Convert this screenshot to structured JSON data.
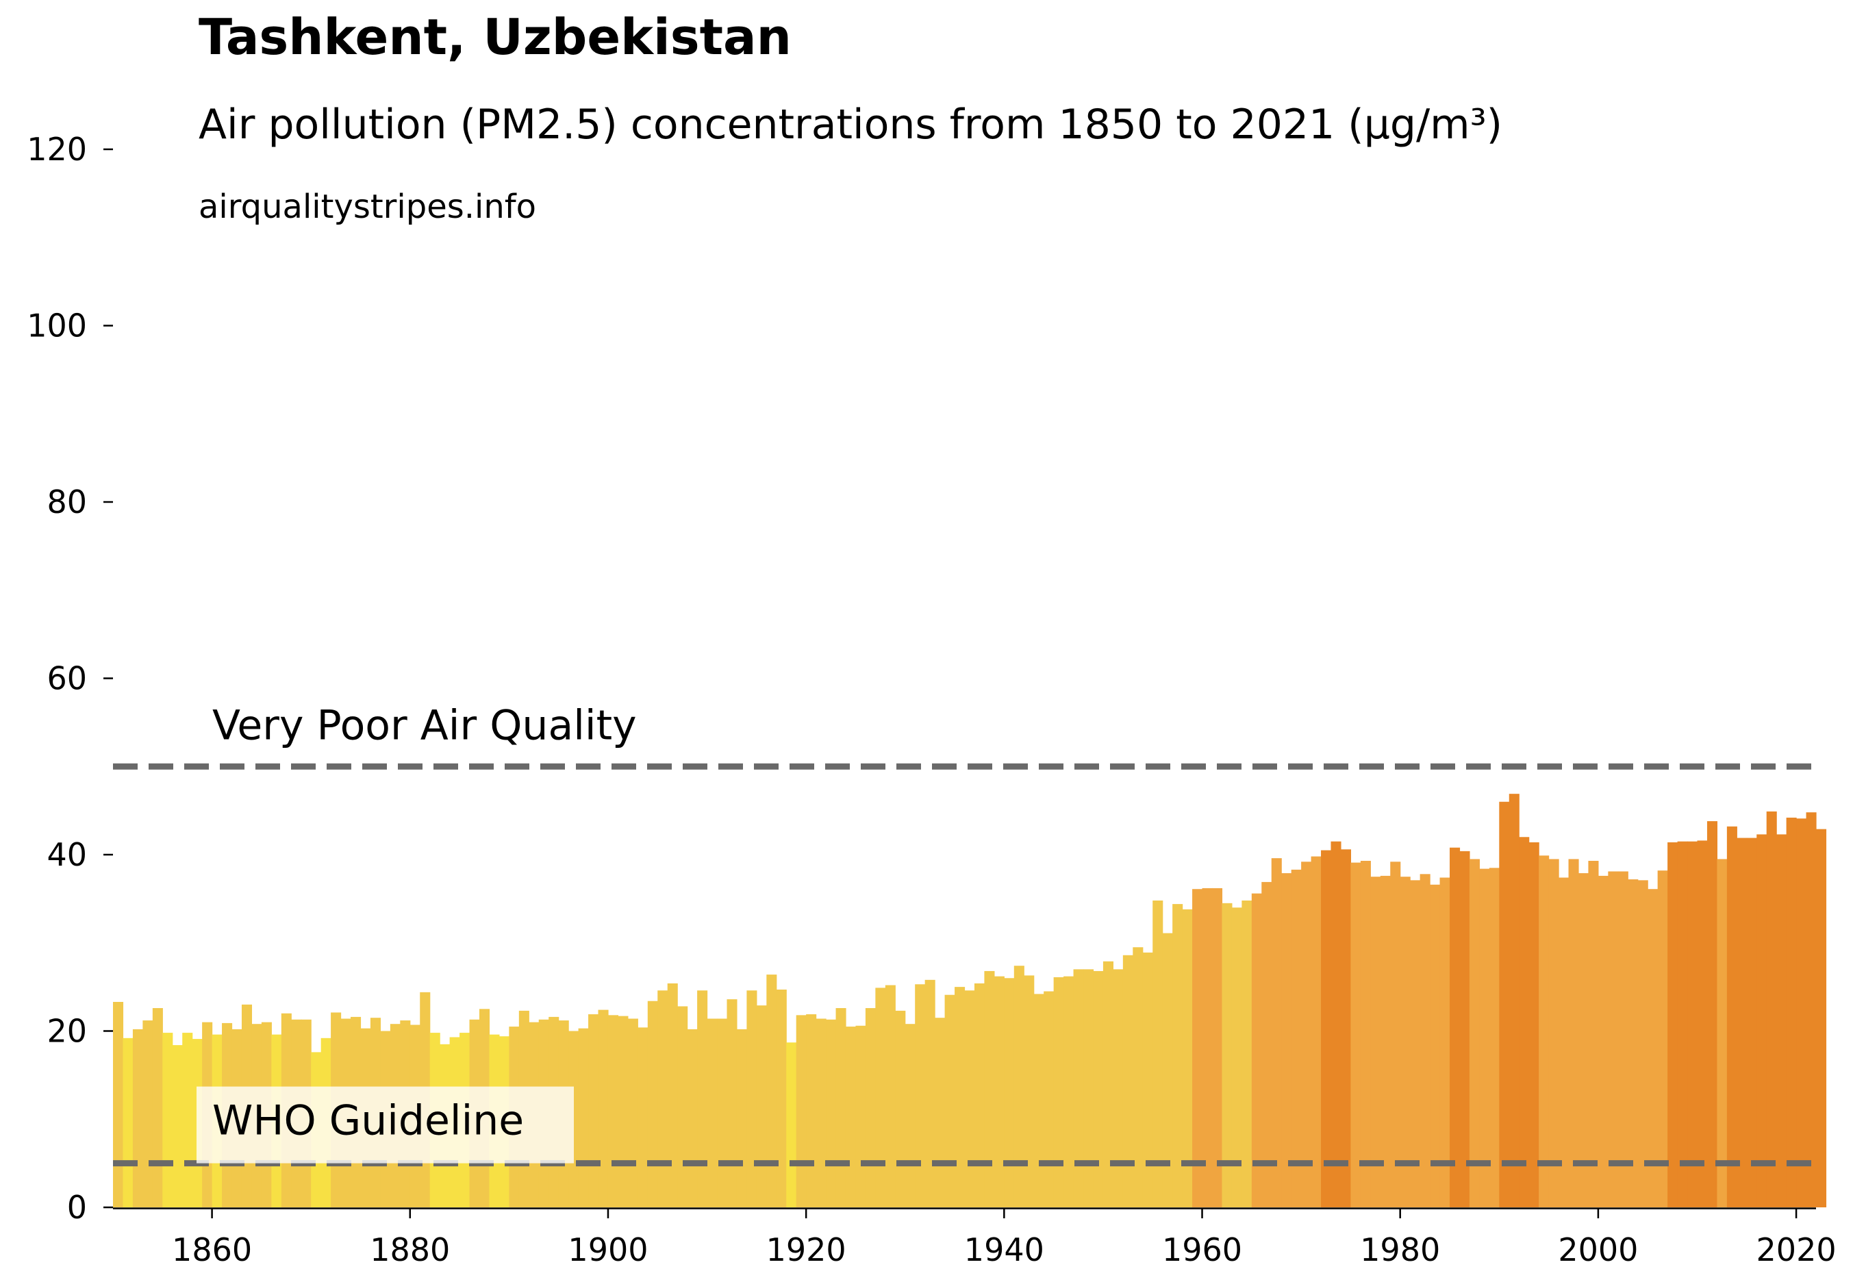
{
  "chart_data": {
    "type": "bar",
    "title": "Tashkent, Uzbekistan",
    "subtitle": "Air pollution (PM2.5) concentrations from 1850 to 2021 (µg/m³)",
    "source": "airqualitystripes.info",
    "xlim": [
      1850,
      2022
    ],
    "ylim": [
      0,
      120
    ],
    "x_ticks": [
      1860,
      1880,
      1900,
      1920,
      1940,
      1960,
      1980,
      2000,
      2020
    ],
    "y_ticks": [
      0,
      20,
      40,
      60,
      80,
      100,
      120
    ],
    "grid": false,
    "years_start": 1850,
    "values": [
      23.3,
      19.2,
      20.2,
      21.2,
      22.6,
      19.8,
      18.4,
      19.8,
      19.1,
      21.0,
      19.6,
      20.9,
      20.2,
      23.0,
      20.8,
      21.0,
      19.6,
      22.0,
      21.3,
      21.3,
      17.6,
      19.2,
      22.1,
      21.4,
      21.6,
      20.3,
      21.5,
      20.0,
      20.8,
      21.2,
      20.7,
      24.4,
      19.8,
      18.5,
      19.3,
      19.8,
      21.3,
      22.5,
      19.6,
      19.4,
      20.5,
      22.3,
      21.0,
      21.3,
      21.6,
      21.2,
      20.0,
      20.3,
      21.9,
      22.4,
      21.8,
      21.7,
      21.4,
      20.4,
      23.4,
      24.6,
      25.4,
      22.8,
      20.2,
      24.6,
      21.4,
      21.4,
      23.6,
      20.2,
      24.6,
      22.9,
      26.4,
      24.7,
      18.7,
      21.8,
      21.9,
      21.4,
      21.3,
      22.6,
      20.5,
      20.6,
      22.6,
      24.9,
      25.2,
      22.3,
      20.8,
      25.3,
      25.8,
      21.5,
      24.1,
      25.0,
      24.6,
      25.4,
      26.8,
      26.2,
      26.0,
      27.4,
      26.3,
      24.2,
      24.5,
      26.1,
      26.2,
      27.0,
      27.0,
      26.8,
      27.9,
      27.0,
      28.6,
      29.5,
      28.9,
      34.8,
      31.1,
      34.4,
      33.8,
      36.1,
      36.2,
      36.2,
      34.5,
      34.0,
      34.8,
      35.6,
      36.9,
      39.6,
      37.9,
      38.3,
      39.2,
      39.8,
      40.5,
      41.5,
      40.6,
      39.1,
      39.3,
      37.5,
      37.6,
      39.2,
      37.5,
      37.1,
      37.8,
      36.6,
      37.4,
      40.8,
      40.4,
      39.5,
      38.4,
      38.5,
      46.0,
      46.9,
      42.0,
      41.4,
      39.9,
      39.5,
      37.4,
      39.5,
      37.9,
      39.3,
      37.6,
      38.1,
      38.1,
      37.2,
      37.1,
      36.1,
      38.2,
      41.4,
      41.5,
      41.5,
      41.6,
      43.8,
      39.5,
      43.2,
      41.9,
      41.9,
      42.3,
      44.9,
      42.3,
      44.2,
      44.1,
      44.8,
      42.9
    ],
    "reference_lines": [
      {
        "value": 50,
        "label": "Very Poor Air Quality",
        "color": "#696969"
      },
      {
        "value": 5,
        "label": "WHO Guideline",
        "color": "#696969"
      }
    ],
    "color_bins": [
      {
        "max": 20,
        "color": "#f7e044"
      },
      {
        "max": 35,
        "color": "#f1c84b"
      },
      {
        "max": 40,
        "color": "#f0a540"
      },
      {
        "max": 999,
        "color": "#e88726"
      }
    ]
  }
}
